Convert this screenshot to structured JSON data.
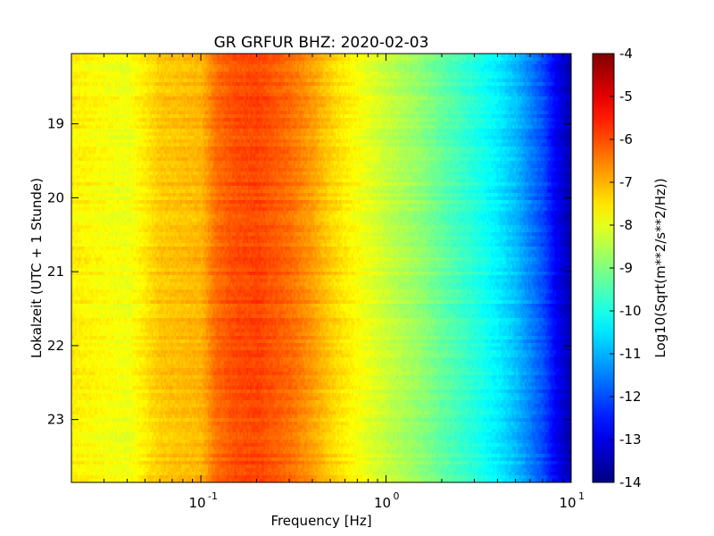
{
  "chart_data": {
    "type": "heatmap",
    "title": "GR GRFUR BHZ: 2020-02-03",
    "xlabel": "Frequency [Hz]",
    "ylabel": "Lokalzeit (UTC + 1 Stunde)",
    "colorbar_label": "Log10(Sqrt(m**2/s**2/Hz))",
    "x_scale": "log",
    "xlim": [
      0.02,
      10
    ],
    "ylim": [
      23.85,
      18.05
    ],
    "x_ticks": [
      {
        "value": 0.1,
        "base": "10",
        "exp": "-1"
      },
      {
        "value": 1,
        "base": "10",
        "exp": "0"
      },
      {
        "value": 10,
        "base": "10",
        "exp": "1"
      }
    ],
    "y_ticks": [
      {
        "value": 19,
        "label": "19"
      },
      {
        "value": 20,
        "label": "20"
      },
      {
        "value": 21,
        "label": "21"
      },
      {
        "value": 22,
        "label": "22"
      },
      {
        "value": 23,
        "label": "23"
      }
    ],
    "colorbar_range": [
      -14,
      -4
    ],
    "colorbar_ticks": [
      "-4",
      "-5",
      "-6",
      "-7",
      "-8",
      "-9",
      "-10",
      "-11",
      "-12",
      "-13",
      "-14"
    ],
    "colormap": "jet",
    "spectrum_profile": {
      "freq_hz": [
        0.02,
        0.04,
        0.06,
        0.08,
        0.1,
        0.12,
        0.15,
        0.2,
        0.3,
        0.4,
        0.5,
        0.7,
        1.0,
        1.5,
        2.0,
        3.0,
        4.0,
        5.0,
        6.0,
        7.0,
        8.0,
        9.0,
        10.0
      ],
      "log10_amplitude": [
        -7.6,
        -7.9,
        -7.2,
        -7.1,
        -7.0,
        -6.3,
        -6.0,
        -5.9,
        -6.3,
        -6.8,
        -7.3,
        -7.8,
        -8.3,
        -8.8,
        -9.3,
        -9.9,
        -10.4,
        -10.9,
        -11.5,
        -12.0,
        -12.7,
        -13.2,
        -13.6
      ]
    },
    "grid": false,
    "colorbar_placement": "right"
  }
}
